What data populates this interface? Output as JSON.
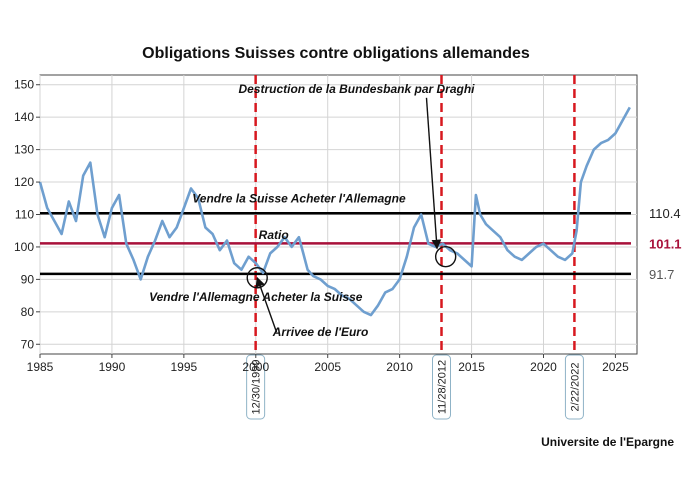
{
  "chart_data": {
    "type": "line",
    "title": "Obligations Suisses contre obligations allemandes",
    "source": "Universite de l'Epargne",
    "xlim": [
      1985,
      2026.5
    ],
    "ylim": [
      67,
      153
    ],
    "x_ticks": [
      1985,
      1990,
      1995,
      2000,
      2005,
      2010,
      2015,
      2020,
      2025
    ],
    "x_tick_labels": [
      "1985",
      "1990",
      "1995",
      "2000",
      "2005",
      "2010",
      "2015",
      "2020",
      "2025"
    ],
    "y_ticks": [
      70,
      80,
      90,
      100,
      110,
      120,
      130,
      140,
      150
    ],
    "y_tick_labels": [
      "70",
      "80",
      "90",
      "100",
      "110",
      "120",
      "130",
      "140",
      "150"
    ],
    "grid": true,
    "series": [
      {
        "name": "Ratio",
        "color": "#6f9fcf",
        "x": [
          1985.0,
          1985.5,
          1986.0,
          1986.5,
          1987.0,
          1987.5,
          1988.0,
          1988.5,
          1989.0,
          1989.5,
          1990.0,
          1990.5,
          1991.0,
          1991.5,
          1992.0,
          1992.5,
          1993.0,
          1993.5,
          1994.0,
          1994.5,
          1995.0,
          1995.5,
          1996.0,
          1996.5,
          1997.0,
          1997.5,
          1998.0,
          1998.5,
          1999.0,
          1999.5,
          2000.0,
          2000.5,
          2001.0,
          2001.5,
          2002.0,
          2002.5,
          2003.0,
          2003.3,
          2003.6,
          2004.0,
          2004.5,
          2005.0,
          2005.5,
          2006.0,
          2006.5,
          2007.0,
          2007.5,
          2008.0,
          2008.5,
          2009.0,
          2009.5,
          2010.0,
          2010.5,
          2011.0,
          2011.5,
          2012.0,
          2012.5,
          2013.0,
          2013.5,
          2014.0,
          2014.5,
          2015.0,
          2015.3,
          2015.6,
          2016.0,
          2016.5,
          2017.0,
          2017.5,
          2018.0,
          2018.5,
          2019.0,
          2019.5,
          2020.0,
          2020.5,
          2021.0,
          2021.5,
          2022.0,
          2022.3,
          2022.6,
          2023.0,
          2023.5,
          2024.0,
          2024.5,
          2025.0,
          2025.5,
          2026.0
        ],
        "values": [
          120,
          112,
          108,
          104,
          114,
          108,
          122,
          126,
          110,
          103,
          112,
          116,
          101,
          96,
          90,
          97,
          102,
          108,
          103,
          106,
          112,
          118,
          115,
          106,
          104,
          99,
          102,
          95,
          93,
          97,
          95,
          92,
          98,
          100,
          103,
          100,
          103,
          98,
          93,
          91,
          90,
          88,
          87,
          85,
          84,
          82,
          80,
          79,
          82,
          86,
          87,
          90,
          97,
          106,
          110,
          101,
          100,
          101,
          99,
          98,
          96,
          94,
          116,
          110,
          107,
          105,
          103,
          99,
          97,
          96,
          98,
          100,
          101,
          99,
          97,
          96,
          98,
          105,
          120,
          125,
          130,
          132,
          133,
          135,
          139,
          143
        ]
      }
    ],
    "series_label": "Ratio",
    "horizontal_lines": [
      {
        "value": 110.4,
        "label": "110.4",
        "color": "#000000"
      },
      {
        "value": 101.1,
        "label": "101.1",
        "color": "#a8103a"
      },
      {
        "value": 91.7,
        "label": "91.7",
        "color": "#000000"
      }
    ],
    "event_lines": [
      {
        "x": 1999.99,
        "label": "12/30/1999"
      },
      {
        "x": 2012.91,
        "label": "11/28/2012"
      },
      {
        "x": 2022.15,
        "label": "2/22/2022"
      }
    ],
    "annotations": [
      {
        "text": "Vendre la Suisse Acheter l'Allemagne",
        "x": 2003.0,
        "y": 113.7
      },
      {
        "text": "Vendre l'Allemagne Acheter la Suisse",
        "x": 2000.0,
        "y": 83.3
      },
      {
        "text": "Arrivee de l'Euro",
        "x": 2004.5,
        "y": 72.5,
        "arrow_to": [
          2000.1,
          90.5
        ]
      },
      {
        "text": "Destruction de la Bundesbank par Draghi",
        "x": 2007.0,
        "y": 147.5,
        "arrow_to": [
          2012.6,
          99.5
        ]
      }
    ],
    "circles": [
      {
        "x": 2000.1,
        "y": 90.5
      },
      {
        "x": 2013.2,
        "y": 97.0
      }
    ]
  }
}
